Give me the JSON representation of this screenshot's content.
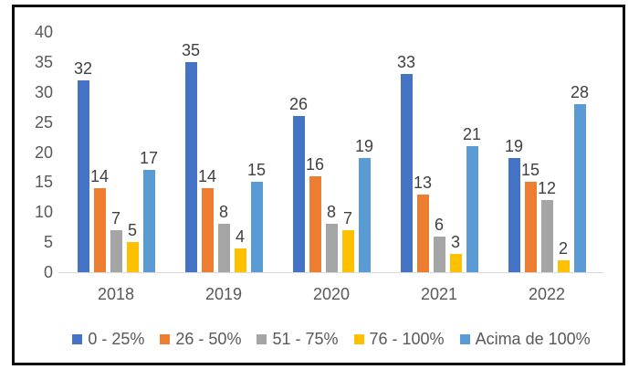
{
  "chart_data": {
    "type": "bar",
    "title": "",
    "xlabel": "",
    "ylabel": "",
    "categories": [
      "2018",
      "2019",
      "2020",
      "2021",
      "2022"
    ],
    "series": [
      {
        "name": "0 - 25%",
        "color": "#4472C4",
        "values": [
          32,
          35,
          26,
          33,
          19
        ]
      },
      {
        "name": "26 - 50%",
        "color": "#ED7D31",
        "values": [
          14,
          14,
          16,
          13,
          15
        ]
      },
      {
        "name": "51 - 75%",
        "color": "#A5A5A5",
        "values": [
          7,
          8,
          8,
          6,
          12
        ]
      },
      {
        "name": "76 - 100%",
        "color": "#FFC000",
        "values": [
          5,
          4,
          7,
          3,
          2
        ]
      },
      {
        "name": "Acima de 100%",
        "color": "#5B9BD5",
        "values": [
          17,
          15,
          19,
          21,
          28
        ]
      }
    ],
    "ylim": [
      0,
      40
    ],
    "yticks": [
      0,
      5,
      10,
      15,
      20,
      25,
      30,
      35,
      40
    ],
    "grid": false,
    "legend_position": "bottom",
    "data_labels": true
  },
  "colors": {
    "axis_text": "#595959",
    "data_label_text": "#404040",
    "axis_line": "#d9d9d9",
    "frame_border": "#0d0d0d",
    "background": "#ffffff"
  }
}
